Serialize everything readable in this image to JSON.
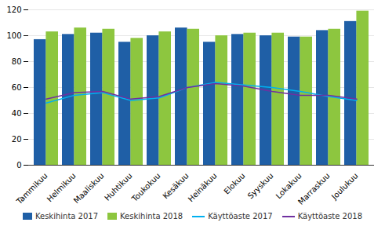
{
  "chart_data": {
    "type": "bar",
    "categories": [
      "Tammikuu",
      "Helmikuu",
      "Maaliskuu",
      "Huhtikuu",
      "Toukokuu",
      "Kesäkuu",
      "Heinäkuu",
      "Elokuu",
      "Syyskuu",
      "Lokakuu",
      "Marraskuu",
      "Joulukuu"
    ],
    "series": [
      {
        "name": "Keskihinta 2017",
        "type": "bar",
        "color": "#1f5fa6",
        "values": [
          97,
          101,
          102,
          95,
          100,
          106,
          95,
          101,
          100,
          99,
          104,
          111
        ]
      },
      {
        "name": "Keskihinta 2018",
        "type": "bar",
        "color": "#8dc63f",
        "values": [
          103,
          106,
          105,
          98,
          103,
          105,
          100,
          102,
          102,
          99,
          105,
          119
        ]
      },
      {
        "name": "Käyttöaste 2017",
        "type": "line",
        "color": "#00b0f0",
        "values": [
          48,
          54,
          56,
          50,
          52,
          60,
          64,
          62,
          60,
          57,
          53,
          50
        ]
      },
      {
        "name": "Käyttöaste 2018",
        "type": "line",
        "color": "#7030a0",
        "values": [
          51,
          56,
          57,
          51,
          53,
          60,
          63,
          61,
          57,
          54,
          54,
          51
        ]
      }
    ],
    "ylim": [
      0,
      120
    ],
    "yticks": [
      0,
      20,
      40,
      60,
      80,
      100,
      120
    ],
    "grid": true,
    "legend": "bottom"
  }
}
